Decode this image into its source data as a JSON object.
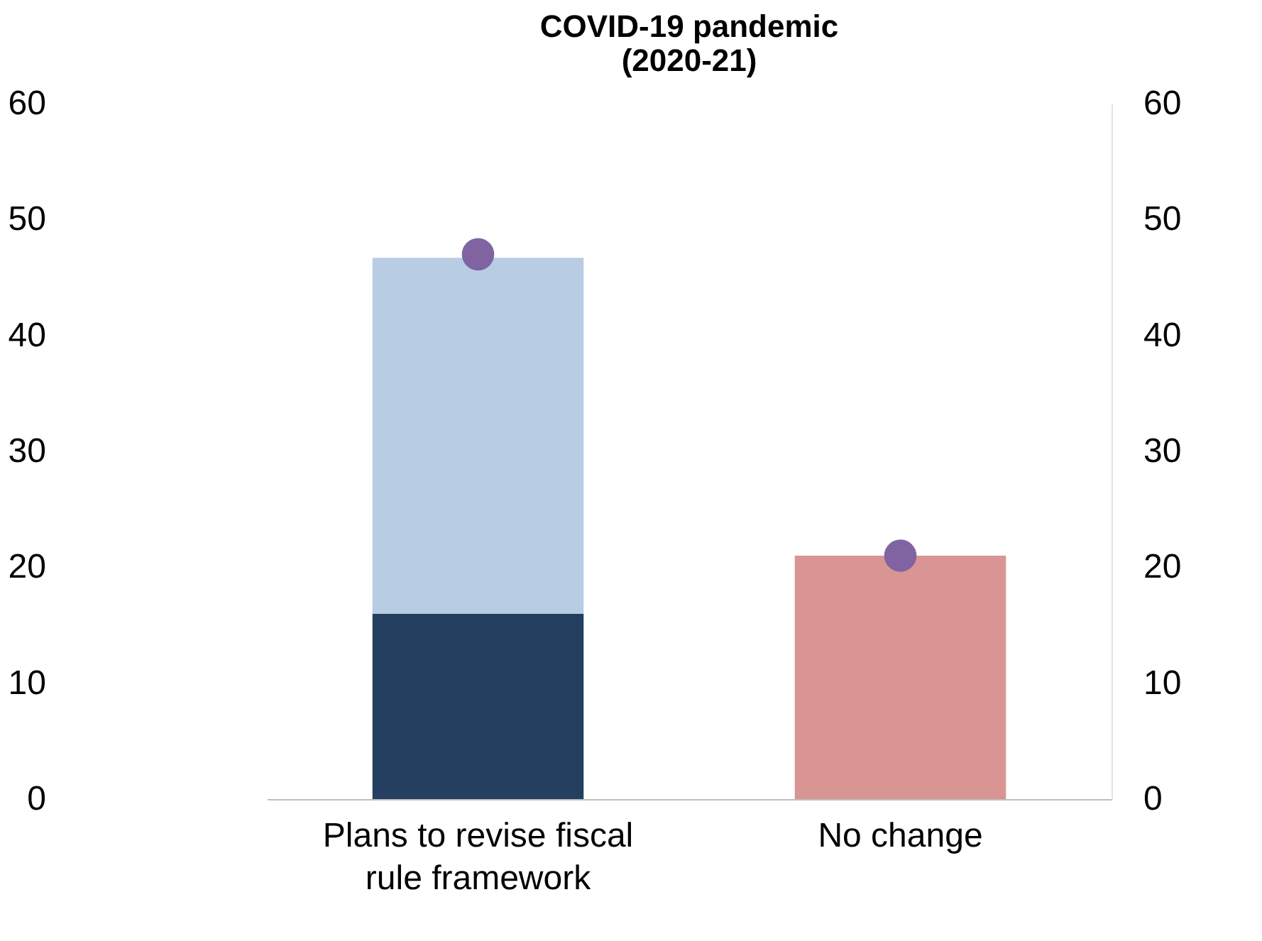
{
  "chart_data": {
    "type": "bar",
    "title": [
      "COVID-19 pandemic",
      "(2020-21)"
    ],
    "categories": [
      "Plans to revise fiscal rule framework",
      "No change"
    ],
    "stacked": true,
    "series": [
      {
        "color": "#243f60",
        "values": [
          16,
          null
        ]
      },
      {
        "color": "#b8cce4",
        "values": [
          30.7,
          null
        ]
      },
      {
        "color": "#d99594",
        "values": [
          null,
          21
        ]
      },
      {
        "type": "scatter",
        "color": "#8064a2",
        "values": [
          47,
          21
        ]
      }
    ],
    "ylim": [
      0,
      60
    ],
    "yticks": [
      0,
      10,
      20,
      30,
      40,
      50,
      60
    ],
    "y2lim": [
      0,
      60
    ],
    "y2ticks": [
      0,
      10,
      20,
      30,
      40,
      50,
      60
    ],
    "marker": "circle",
    "grid": false
  }
}
